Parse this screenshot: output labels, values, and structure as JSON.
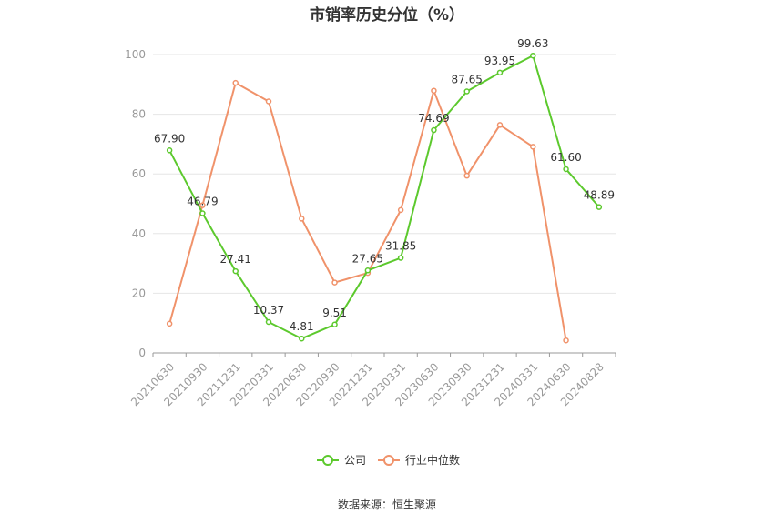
{
  "title": "市销率历史分位（%）",
  "source": "数据来源：恒生聚源",
  "chart_data": {
    "type": "line",
    "title": "市销率历史分位（%）",
    "categories": [
      "20210630",
      "20210930",
      "20211231",
      "20220331",
      "20220630",
      "20220930",
      "20221231",
      "20230331",
      "20230630",
      "20230930",
      "20231231",
      "20240331",
      "20240630",
      "20240828"
    ],
    "ylim": [
      0,
      100
    ],
    "yticks": [
      0,
      20,
      40,
      60,
      80,
      100
    ],
    "grid": true,
    "legend_position": "bottom",
    "series": [
      {
        "name": "公司",
        "color": "#5cc92d",
        "values": [
          67.9,
          46.79,
          27.41,
          10.37,
          4.81,
          9.51,
          27.65,
          31.85,
          74.69,
          87.65,
          93.95,
          99.63,
          61.6,
          48.89
        ],
        "labels": [
          "67.90",
          "46.79",
          "27.41",
          "10.37",
          "4.81",
          "9.51",
          "27.65",
          "31.85",
          "74.69",
          "87.65",
          "93.95",
          "99.63",
          "61.60",
          "48.89"
        ]
      },
      {
        "name": "行业中位数",
        "color": "#f0926a",
        "values": [
          9.8,
          49.5,
          90.5,
          84.3,
          45.0,
          23.6,
          26.8,
          47.9,
          87.9,
          59.4,
          76.4,
          69.1,
          4.2,
          null
        ]
      }
    ]
  }
}
